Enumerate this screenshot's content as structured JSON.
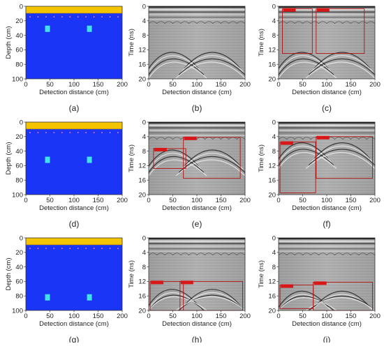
{
  "figure": {
    "x_label": "Detection distance (cm)",
    "x_label_radar": "Detection distance  (cm)",
    "depth_label": "Depth (cm)",
    "time_label": "Time (ns)",
    "x_ticks": [
      "0",
      "50",
      "100",
      "150",
      "200"
    ],
    "depth_ticks": [
      "0",
      "20",
      "40",
      "60",
      "80",
      "100"
    ],
    "time_ticks": [
      "0",
      "4",
      "8",
      "12",
      "16",
      "20"
    ],
    "colors": {
      "soil": "#1a35f5",
      "air_layer": "#f5c400",
      "target": "#3fe3e8",
      "rebar_dots": "#ff7ad0",
      "box_red": "#b01010",
      "label_red": "#d81818"
    }
  },
  "captions": [
    "(a)",
    "(b)",
    "(c)",
    "(d)",
    "(e)",
    "(f)",
    "(g)",
    "(h)",
    "(i)"
  ],
  "rows": [
    {
      "model": {
        "targets": [
          {
            "x": 45,
            "depth": 31
          },
          {
            "x": 132,
            "depth": 31
          }
        ]
      },
      "radar_b": {
        "hyperbola_apex_ns": 12.5
      },
      "radar_c": {
        "boxes": [
          {
            "x0": 8,
            "x1": 70,
            "t0": 0.7,
            "t1": 13
          },
          {
            "x0": 78,
            "x1": 178,
            "t0": 0.7,
            "t1": 13
          }
        ]
      }
    },
    {
      "model": {
        "targets": [
          {
            "x": 45,
            "depth": 52
          },
          {
            "x": 132,
            "depth": 52
          }
        ]
      },
      "radar_e": {
        "hyperbola_apex_ns": 7.5,
        "boxes": [
          {
            "x0": 10,
            "x1": 77,
            "t0": 7.3,
            "t1": 12.8
          },
          {
            "x0": 72,
            "x1": 190,
            "t0": 4.2,
            "t1": 15.5
          }
        ]
      },
      "radar_f": {
        "hyperbola_apex_ns": 5.5,
        "boxes": [
          {
            "x0": 3,
            "x1": 77,
            "t0": 5.5,
            "t1": 19.5
          },
          {
            "x0": 78,
            "x1": 195,
            "t0": 4.0,
            "t1": 15.5
          }
        ]
      }
    },
    {
      "model": {
        "targets": [
          {
            "x": 45,
            "depth": 82
          },
          {
            "x": 132,
            "depth": 82
          }
        ]
      },
      "radar_h": {
        "hyperbola_apex_ns": 14,
        "boxes": [
          {
            "x0": 3,
            "x1": 72,
            "t0": 12,
            "t1": 20
          },
          {
            "x0": 65,
            "x1": 195,
            "t0": 12,
            "t1": 20
          }
        ]
      },
      "radar_i": {
        "hyperbola_apex_ns": 14.5,
        "boxes": [
          {
            "x0": 3,
            "x1": 72,
            "t0": 13,
            "t1": 19.5
          },
          {
            "x0": 72,
            "x1": 195,
            "t0": 12.2,
            "t1": 20
          }
        ]
      }
    }
  ]
}
